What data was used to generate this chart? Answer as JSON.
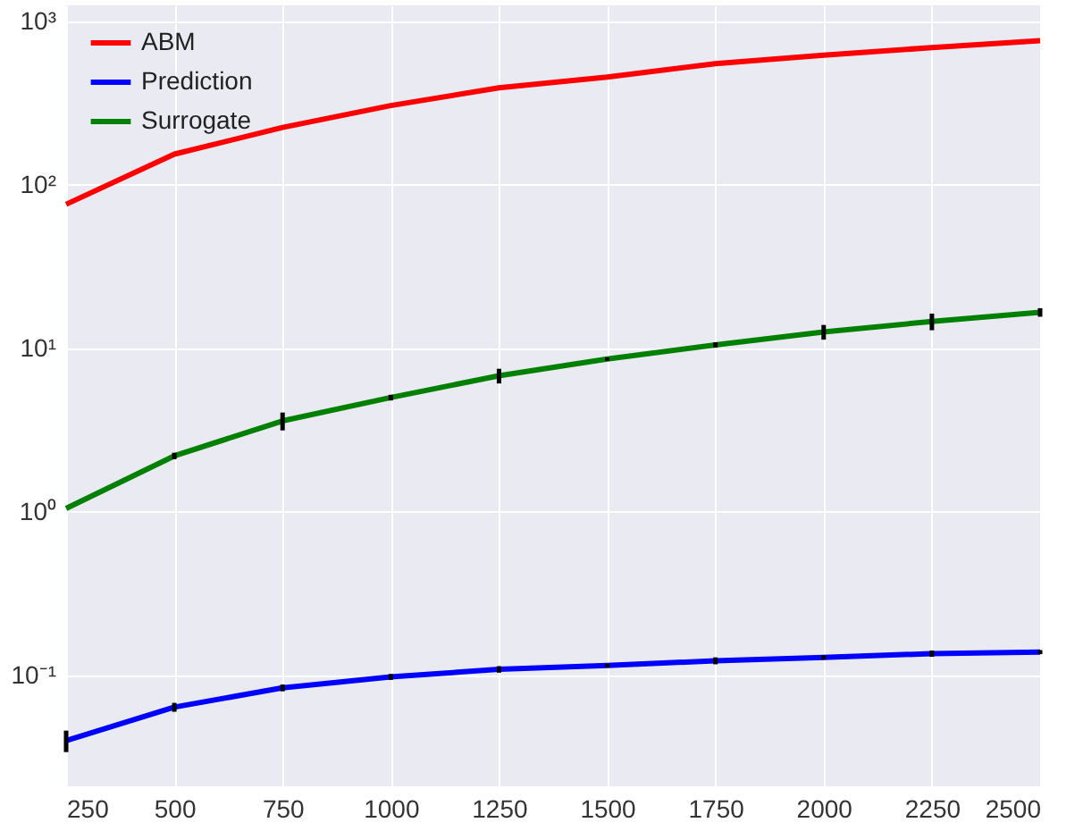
{
  "chart_data": {
    "type": "line",
    "x": [
      250,
      500,
      750,
      1000,
      1250,
      1500,
      1750,
      2000,
      2250,
      2500
    ],
    "series": [
      {
        "name": "ABM",
        "color": "#ff0000",
        "values": [
          76,
          154,
          224,
          305,
          392,
          456,
          550,
          620,
          690,
          760
        ]
      },
      {
        "name": "Prediction",
        "color": "#0000ff",
        "values": [
          0.04,
          0.064,
          0.084,
          0.098,
          0.109,
          0.115,
          0.123,
          0.129,
          0.136,
          0.139
        ],
        "errors": [
          0.006,
          0.004,
          0.004,
          0.004,
          0.005,
          0.003,
          0.006,
          0.004,
          0.006,
          0.004
        ]
      },
      {
        "name": "Surrogate",
        "color": "#008000",
        "values": [
          1.05,
          2.2,
          3.6,
          5.0,
          6.8,
          8.6,
          10.5,
          12.6,
          14.6,
          16.6
        ],
        "errors": [
          null,
          0.1,
          0.45,
          0.2,
          0.7,
          0.2,
          0.4,
          1.3,
          1.7,
          1.0
        ]
      }
    ],
    "log": "y",
    "xlim": [
      250,
      2500
    ],
    "xticks": [
      250,
      500,
      750,
      1000,
      1250,
      1500,
      1750,
      2000,
      2250,
      2500
    ],
    "ylim": [
      0.021,
      1250
    ],
    "yticks": [
      {
        "value": 0.1,
        "label": "10⁻¹"
      },
      {
        "value": 1,
        "label": "10⁰"
      },
      {
        "value": 10,
        "label": "10¹"
      },
      {
        "value": 100,
        "label": "10²"
      },
      {
        "value": 1000,
        "label": "10³"
      }
    ],
    "grid": true,
    "legend": "top left",
    "marker": "none",
    "line_style": "solid"
  }
}
